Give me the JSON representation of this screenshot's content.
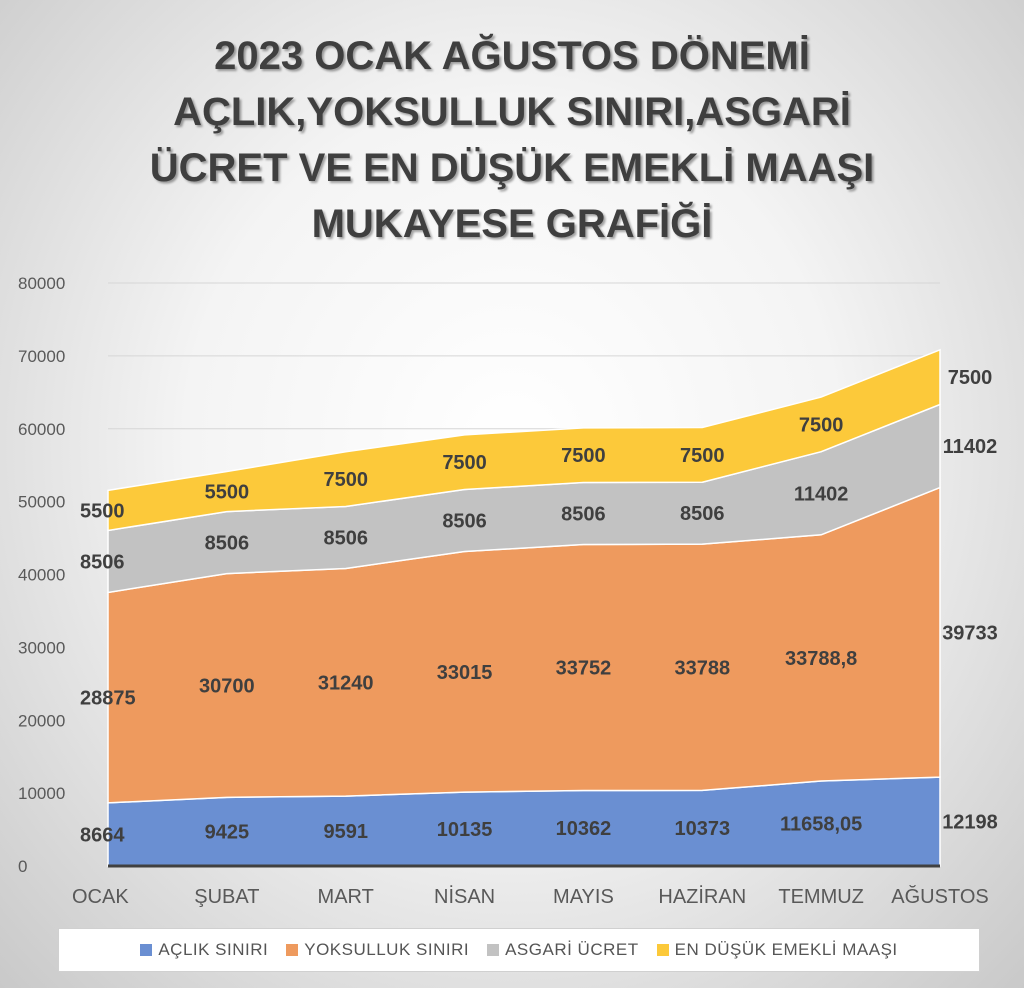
{
  "title_lines": [
    "2023 OCAK AĞUSTOS DÖNEMİ",
    "AÇLIK,YOKSULLUK SINIRI,ASGARİ",
    "ÜCRET VE EN DÜŞÜK EMEKLİ MAAŞI",
    "MUKAYESE GRAFİĞİ"
  ],
  "chart_data": {
    "type": "area",
    "stacked": true,
    "categories": [
      "OCAK",
      "ŞUBAT",
      "MART",
      "NİSAN",
      "MAYIS",
      "HAZİRAN",
      "TEMMUZ",
      "AĞUSTOS"
    ],
    "ylim": [
      0,
      80000
    ],
    "yticks": [
      "0",
      "10000",
      "20000",
      "30000",
      "40000",
      "50000",
      "60000",
      "70000",
      "80000"
    ],
    "grid": true,
    "legend_position": "bottom",
    "series": [
      {
        "name": "AÇLIK SINIRI",
        "color": "#6a8fd2",
        "values": [
          8664,
          9425,
          9591,
          10135,
          10362,
          10373,
          11658.05,
          12198
        ],
        "labels": [
          "8664",
          "9425",
          "9591",
          "10135",
          "10362",
          "10373",
          "11658,05",
          "12198"
        ]
      },
      {
        "name": "YOKSULLUK SINIRI",
        "color": "#ee9a5e",
        "values": [
          28875,
          30700,
          31240,
          33015,
          33752,
          33788,
          33788.8,
          39733
        ],
        "labels": [
          "28875",
          "30700",
          "31240",
          "33015",
          "33752",
          "33788",
          "33788,8",
          "39733"
        ]
      },
      {
        "name": "ASGARİ ÜCRET",
        "color": "#c2c2c2",
        "values": [
          8506,
          8506,
          8506,
          8506,
          8506,
          8506,
          11402,
          11402
        ],
        "labels": [
          "8506",
          "8506",
          "8506",
          "8506",
          "8506",
          "8506",
          "11402",
          "11402"
        ]
      },
      {
        "name": "EN DÜŞÜK EMEKLİ MAAŞI",
        "color": "#fcc93a",
        "values": [
          5500,
          5500,
          7500,
          7500,
          7500,
          7500,
          7500,
          7500
        ],
        "labels": [
          "5500",
          "5500",
          "7500",
          "7500",
          "7500",
          "7500",
          "7500",
          "7500"
        ]
      }
    ]
  }
}
